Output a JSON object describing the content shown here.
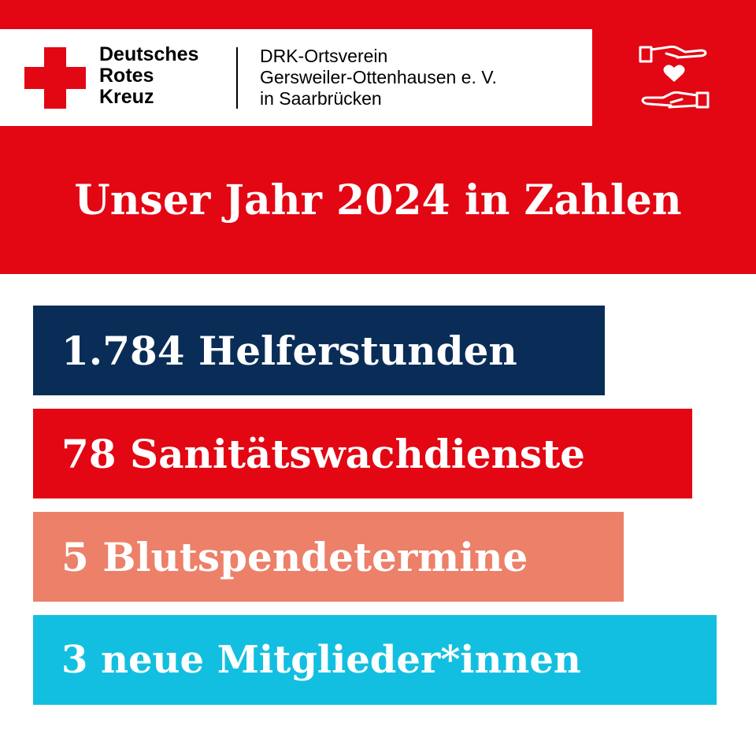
{
  "colors": {
    "brand_red": "#e30613",
    "navy": "#0a2d57",
    "salmon": "#ec8069",
    "cyan": "#13bfe0",
    "white": "#ffffff"
  },
  "logo": {
    "brand_lines": [
      "Deutsches",
      "Rotes",
      "Kreuz"
    ],
    "org_lines": [
      "DRK-Ortsverein",
      "Gersweiler-Ottenhausen e. V.",
      "in Saarbrücken"
    ]
  },
  "icons": {
    "cross": "red-cross-icon",
    "hands": "hands-heart-icon"
  },
  "headline": "Unser Jahr 2024 in Zahlen",
  "stats": [
    {
      "label": "1.784 Helferstunden",
      "color": "#0a2d57"
    },
    {
      "label": "78 Sanitätswachdienste",
      "color": "#e30613"
    },
    {
      "label": "5 Blutspendetermine",
      "color": "#ec8069"
    },
    {
      "label": "3 neue Mitglieder*innen",
      "color": "#13bfe0"
    }
  ]
}
